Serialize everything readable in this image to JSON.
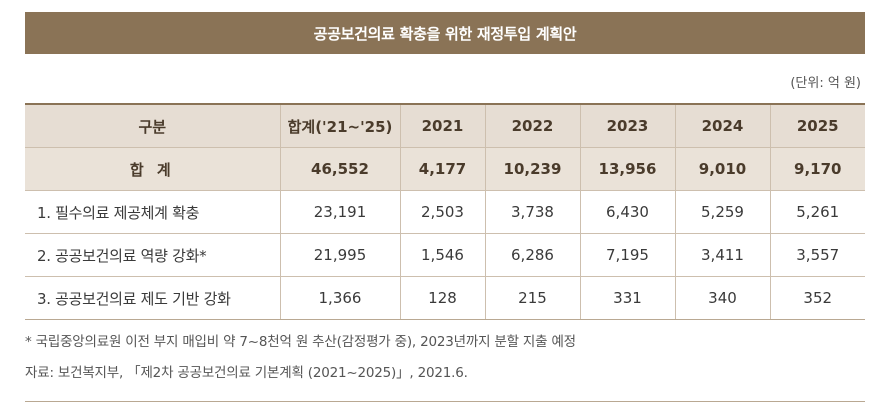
{
  "title": "공공보건의료 확충을 위한 재정투입 계획안",
  "unit_note": "(단위: 억 원)",
  "table": {
    "headers": [
      "구분",
      "합계('21~'25)",
      "2021",
      "2022",
      "2023",
      "2024",
      "2025"
    ],
    "total_row": [
      "합 계",
      "46,552",
      "4,177",
      "10,239",
      "13,956",
      "9,010",
      "9,170"
    ],
    "rows": [
      [
        "1. 필수의료 제공체계 확충",
        "23,191",
        "2,503",
        "3,738",
        "6,430",
        "5,259",
        "5,261"
      ],
      [
        "2. 공공보건의료 역량 강화*",
        "21,995",
        "1,546",
        "6,286",
        "7,195",
        "3,411",
        "3,557"
      ],
      [
        "3. 공공보건의료 제도 기반 강화",
        "1,366",
        "128",
        "215",
        "331",
        "340",
        "352"
      ]
    ]
  },
  "footnote": "* 국립중앙의료원 이전 부지 매입비 약 7~8천억 원 추산(감정평가 중), 2023년까지 분할 지출 예정",
  "source": "자료: 보건복지부, 「제2차 공공보건의료 기본계획 (2021~2025)」, 2021.6.",
  "colors": {
    "title_bar": "#8a7356",
    "header_bg": "#e6ddd3",
    "total_bg": "#eae2d8",
    "border": "#cdbfae"
  }
}
